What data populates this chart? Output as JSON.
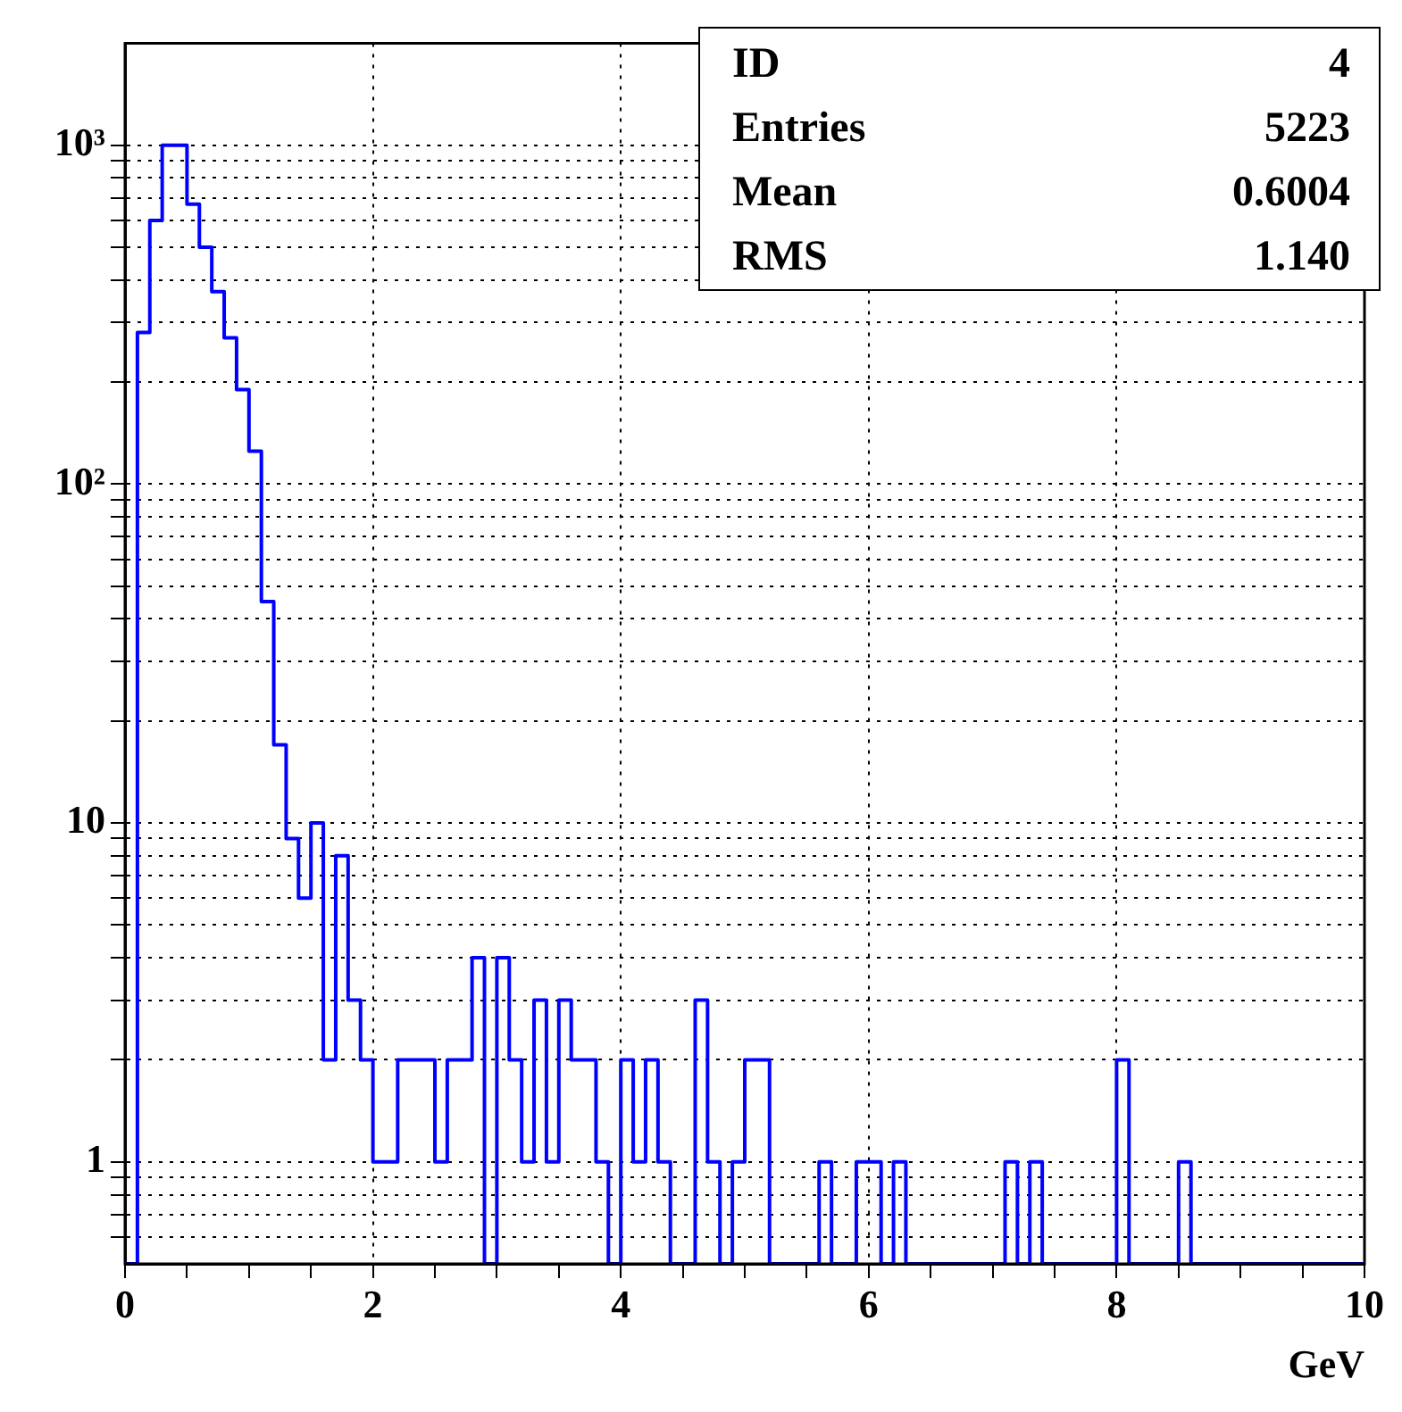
{
  "chart_data": {
    "type": "histogram",
    "xlabel": "GeV",
    "bins": [
      0,
      0.1,
      0.2,
      0.3,
      0.4,
      0.5,
      0.6,
      0.7,
      0.8,
      0.9,
      1,
      1.1,
      1.2,
      1.3,
      1.4,
      1.5,
      1.6,
      1.7,
      1.8,
      1.9,
      2,
      2.1,
      2.2,
      2.3,
      2.4,
      2.5,
      2.6,
      2.7,
      2.8,
      2.9,
      3,
      3.1,
      3.2,
      3.3,
      3.4,
      3.5,
      3.6,
      3.7,
      3.8,
      3.9,
      4,
      4.1,
      4.2,
      4.3,
      4.4,
      4.5,
      4.6,
      4.7,
      4.8,
      4.9,
      5,
      5.1,
      5.2,
      5.3,
      5.4,
      5.5,
      5.6,
      5.7,
      5.8,
      5.9,
      6,
      6.1,
      6.2,
      6.3,
      6.4,
      6.5,
      6.6,
      6.7,
      6.8,
      6.9,
      7,
      7.1,
      7.2,
      7.3,
      7.4,
      7.5,
      7.6,
      7.7,
      7.8,
      7.9,
      8,
      8.1,
      8.2,
      8.3,
      8.4,
      8.5,
      8.6,
      8.7,
      8.8,
      8.9,
      9,
      9.1,
      9.2,
      9.3,
      9.4,
      9.5,
      9.6,
      9.7,
      9.8,
      9.9,
      10
    ],
    "values": [
      null,
      280,
      600,
      1000,
      1000,
      670,
      500,
      370,
      270,
      190,
      125,
      45,
      17,
      9,
      6,
      10,
      2,
      8,
      3,
      2,
      1,
      1,
      2,
      2,
      2,
      1,
      2,
      2,
      4,
      null,
      4,
      2,
      1,
      3,
      1,
      3,
      2,
      2,
      1,
      null,
      2,
      1,
      2,
      1,
      null,
      null,
      3,
      1,
      null,
      1,
      2,
      2,
      null,
      null,
      null,
      null,
      1,
      null,
      null,
      1,
      1,
      null,
      1,
      null,
      null,
      null,
      null,
      null,
      null,
      null,
      null,
      1,
      null,
      1,
      null,
      null,
      null,
      null,
      null,
      null,
      2,
      null,
      null,
      null,
      null,
      1,
      null,
      null,
      null,
      null,
      null,
      null,
      null,
      null,
      null,
      null,
      null,
      null,
      null,
      null
    ],
    "color": "#0000ff",
    "log": "y",
    "grid": true,
    "xlim": [
      0,
      10
    ],
    "xticks": [
      0,
      {
        "value": 0.5,
        "label": null
      },
      {
        "value": 1,
        "label": null
      },
      {
        "value": 1.5,
        "label": null
      },
      2,
      {
        "value": 2.5,
        "label": null
      },
      {
        "value": 3,
        "label": null
      },
      {
        "value": 3.5,
        "label": null
      },
      4,
      {
        "value": 4.5,
        "label": null
      },
      {
        "value": 5,
        "label": null
      },
      {
        "value": 5.5,
        "label": null
      },
      6,
      {
        "value": 6.5,
        "label": null
      },
      {
        "value": 7,
        "label": null
      },
      {
        "value": 7.5,
        "label": null
      },
      8,
      {
        "value": 8.5,
        "label": null
      },
      {
        "value": 9,
        "label": null
      },
      {
        "value": 9.5,
        "label": null
      },
      10
    ],
    "ylim": [
      0.5,
      2000
    ],
    "yticks": [
      {
        "value": 0.6,
        "label": null
      },
      {
        "value": 0.7,
        "label": null
      },
      {
        "value": 0.8,
        "label": null
      },
      {
        "value": 0.9,
        "label": null
      },
      1,
      {
        "value": 2,
        "label": null
      },
      {
        "value": 3,
        "label": null
      },
      {
        "value": 4,
        "label": null
      },
      {
        "value": 5,
        "label": null
      },
      {
        "value": 6,
        "label": null
      },
      {
        "value": 7,
        "label": null
      },
      {
        "value": 8,
        "label": null
      },
      {
        "value": 9,
        "label": null
      },
      10,
      {
        "value": 20,
        "label": null
      },
      {
        "value": 30,
        "label": null
      },
      {
        "value": 40,
        "label": null
      },
      {
        "value": 50,
        "label": null
      },
      {
        "value": 60,
        "label": null
      },
      {
        "value": 70,
        "label": null
      },
      {
        "value": 80,
        "label": null
      },
      {
        "value": 90,
        "label": null
      },
      {
        "value": 100,
        "label": "10²"
      },
      {
        "value": 200,
        "label": null
      },
      {
        "value": 300,
        "label": null
      },
      {
        "value": 400,
        "label": null
      },
      {
        "value": 500,
        "label": null
      },
      {
        "value": 600,
        "label": null
      },
      {
        "value": 700,
        "label": null
      },
      {
        "value": 800,
        "label": null
      },
      {
        "value": 900,
        "label": null
      },
      {
        "value": 1000,
        "label": "10³"
      }
    ],
    "annotations": [
      "ID",
      "4",
      "Entries",
      "5223",
      "Mean",
      "0.6004",
      "RMS",
      "1.140"
    ]
  }
}
